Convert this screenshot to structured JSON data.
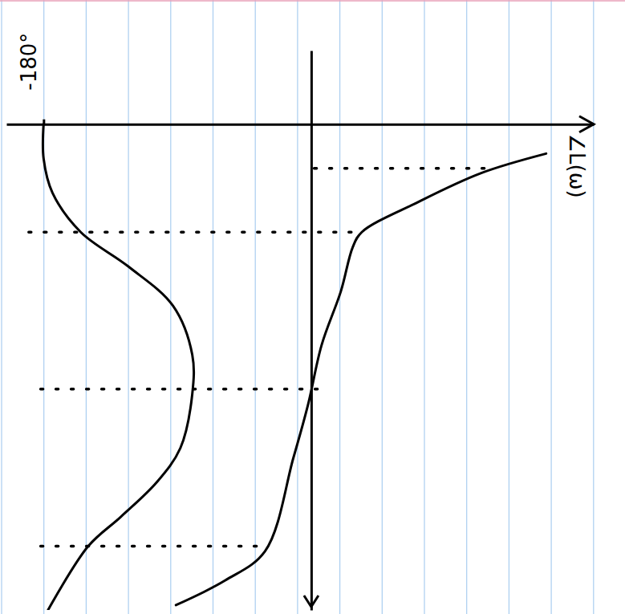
{
  "chart_data": {
    "type": "line",
    "xlabel": "∠L(ω)",
    "xlim": [
      -205,
      190
    ],
    "xticks": [
      {
        "value": -180,
        "label": "-180°"
      }
    ],
    "ylim": [
      -1.5,
      9.9
    ],
    "yticks": [],
    "tick_labels": "x",
    "grid": false,
    "series": [
      {
        "color": "#000000",
        "line_style": "solid",
        "x": [
          -180,
          -180,
          -174,
          -155,
          -123,
          -93,
          -80,
          -80,
          -88,
          -104,
          -128,
          -150,
          -177
        ],
        "values": [
          0,
          0.7,
          1.4,
          2.2,
          2.9,
          3.7,
          4.7,
          5.5,
          6.6,
          7.3,
          8.0,
          8.6,
          9.9
        ]
      },
      {
        "color": "#000000",
        "line_style": "solid",
        "x": [
          158,
          114,
          71,
          34,
          28,
          20,
          7,
          -2,
          -12,
          -31,
          -58,
          -91
        ],
        "values": [
          0.6,
          1.0,
          1.6,
          2.2,
          2.5,
          3.4,
          4.5,
          5.7,
          6.8,
          8.7,
          9.3,
          9.8
        ]
      },
      {
        "color": "#000000",
        "line_style": "dashed",
        "x": [
          2,
          120
        ],
        "values": [
          0.9,
          0.9
        ]
      },
      {
        "color": "#000000",
        "line_style": "dashed",
        "x": [
          -190,
          33
        ],
        "values": [
          2.2,
          2.2
        ]
      },
      {
        "color": "#000000",
        "line_style": "dashed",
        "x": [
          -182,
          12
        ],
        "values": [
          5.4,
          5.4
        ]
      },
      {
        "color": "#000000",
        "line_style": "dashed",
        "x": [
          -182,
          -31
        ],
        "values": [
          8.6,
          8.6
        ]
      }
    ]
  }
}
